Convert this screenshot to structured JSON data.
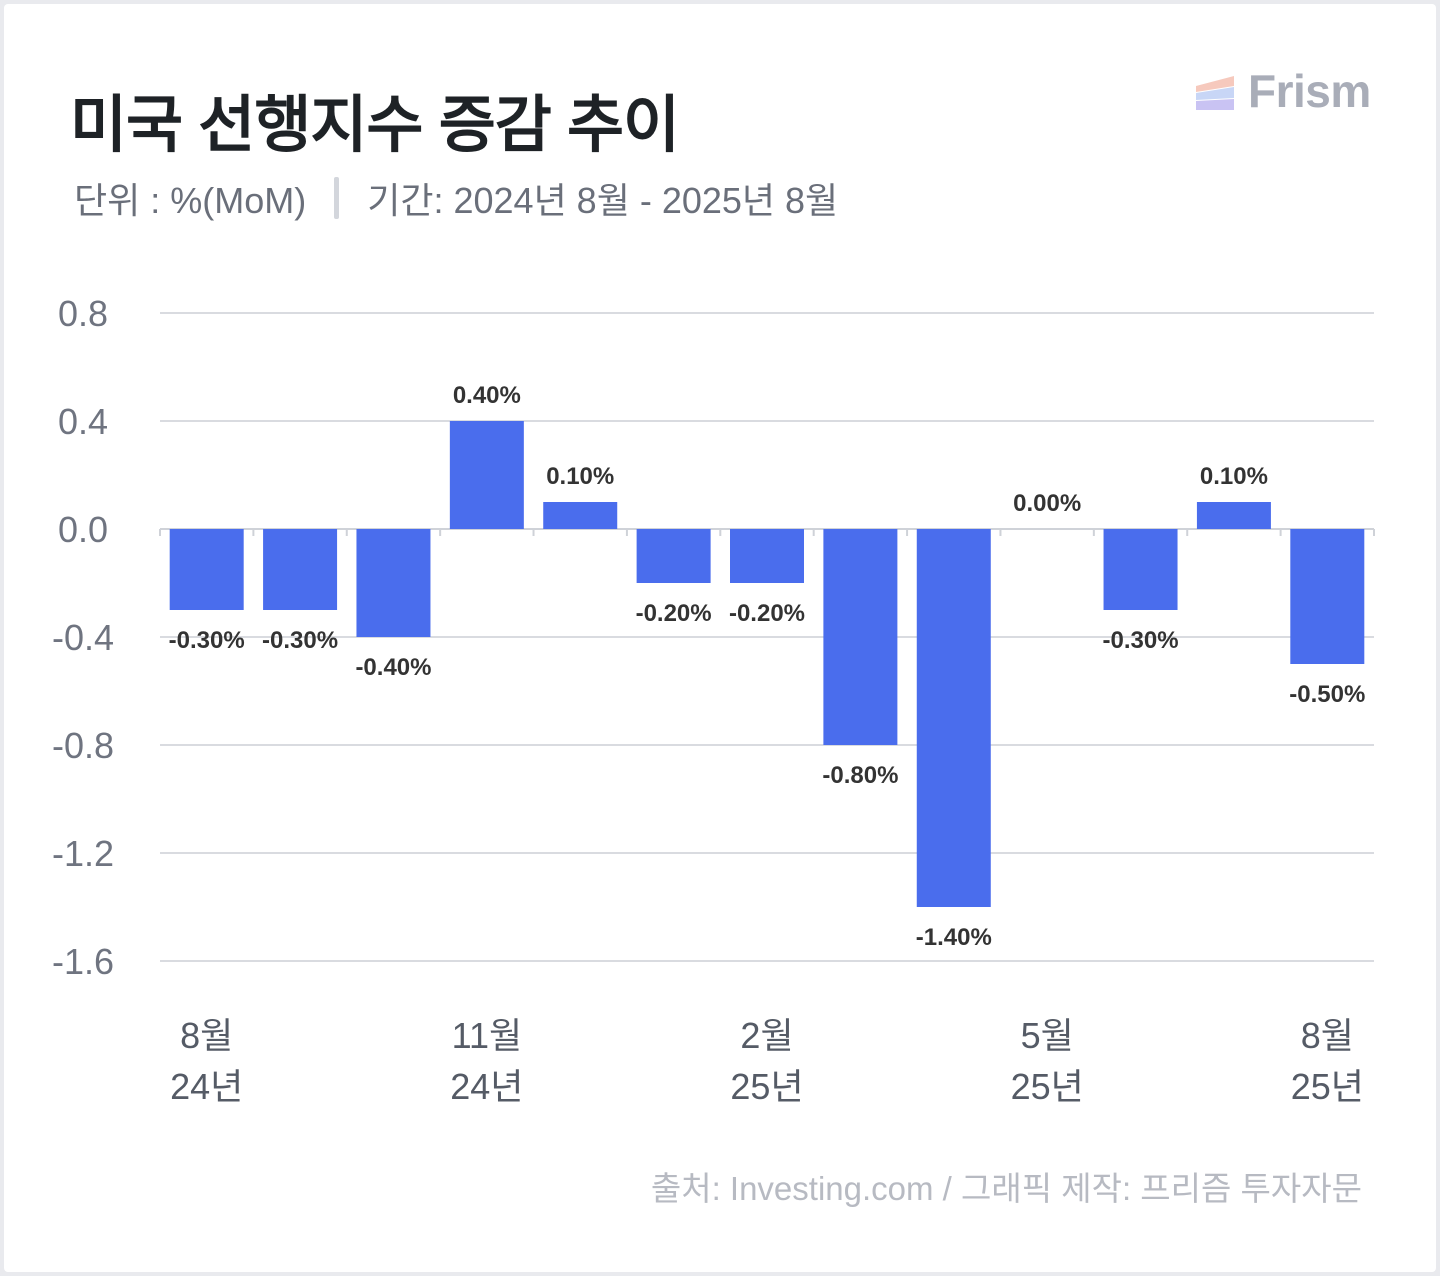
{
  "header": {
    "title": "미국 선행지수 증감 추이",
    "unit": "단위 : %(MoM)",
    "period": "기간: 2024년 8월 - 2025년 8월"
  },
  "logo": {
    "text": "Frism",
    "icon": "frism-layers-icon"
  },
  "footer": {
    "source": "출처: Investing.com / 그래픽 제작: 프리즘 투자자문"
  },
  "colors": {
    "bar": "#4a6ded",
    "grid": "#d9dbe0",
    "axis": "#cfd2d8",
    "label": "#333333"
  },
  "chart_data": {
    "type": "bar",
    "title": "미국 선행지수 증감 추이",
    "unit": "%(MoM)",
    "ylim": [
      -1.6,
      0.8
    ],
    "yticks": [
      0.8,
      0.4,
      0.0,
      -0.4,
      -0.8,
      -1.2,
      -1.6
    ],
    "ytick_labels": [
      "0.8",
      "0.4",
      "0.0",
      "-0.4",
      "-0.8",
      "-1.2",
      "-1.6"
    ],
    "grid": true,
    "values": [
      -0.3,
      -0.3,
      -0.4,
      0.4,
      0.1,
      -0.2,
      -0.2,
      -0.8,
      -1.4,
      0.0,
      -0.3,
      0.1,
      -0.5
    ],
    "data_labels": [
      "-0.30%",
      "-0.30%",
      "-0.40%",
      "0.40%",
      "0.10%",
      "-0.20%",
      "-0.20%",
      "-0.80%",
      "-1.40%",
      "0.00%",
      "-0.30%",
      "0.10%",
      "-0.50%"
    ],
    "xtick_indices": [
      0,
      3,
      6,
      9,
      12
    ],
    "xtick_labels": [
      [
        "8월",
        "24년"
      ],
      [
        "11월",
        "24년"
      ],
      [
        "2월",
        "25년"
      ],
      [
        "5월",
        "25년"
      ],
      [
        "8월",
        "25년"
      ]
    ]
  }
}
